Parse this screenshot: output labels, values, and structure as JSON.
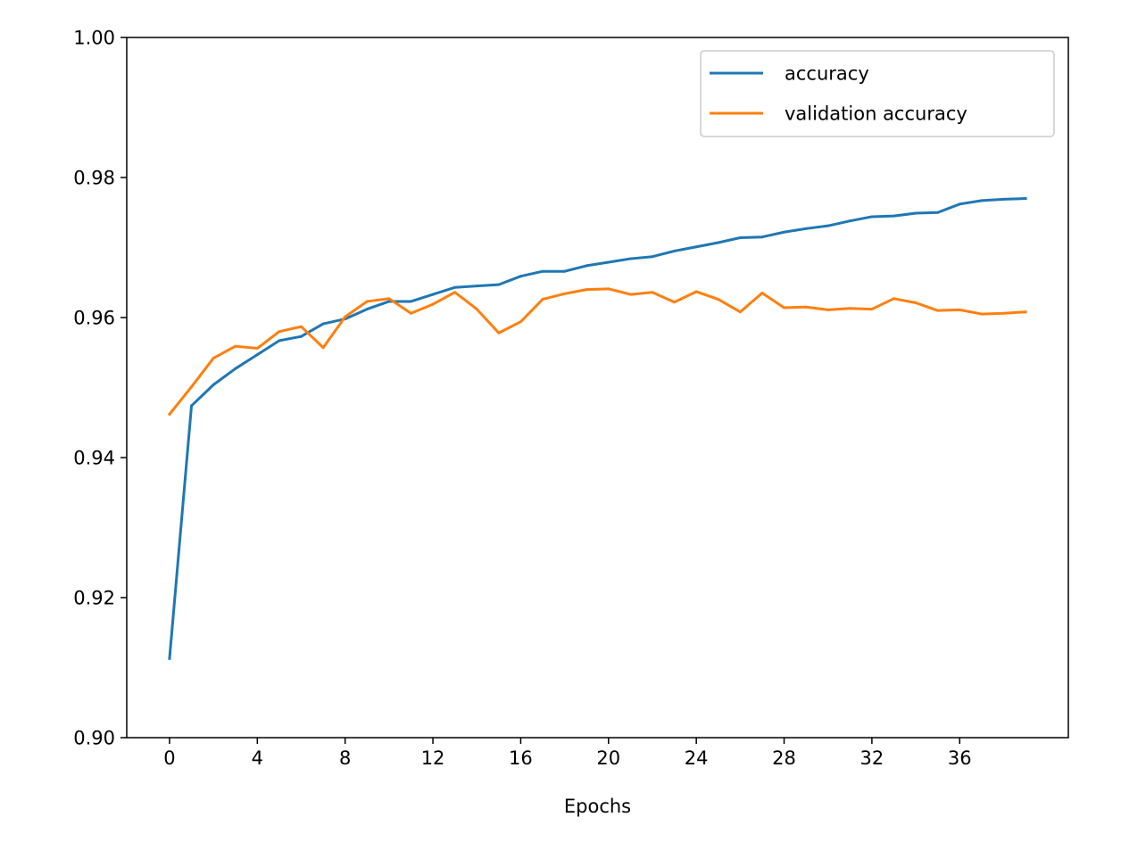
{
  "chart_data": {
    "type": "line",
    "title": "",
    "xlabel": "Epochs",
    "ylabel": "",
    "xlim": [
      -1.95,
      40.95
    ],
    "ylim": [
      0.9,
      1.0
    ],
    "xticks": [
      0,
      4,
      8,
      12,
      16,
      20,
      24,
      28,
      32,
      36
    ],
    "xtick_labels": [
      "0",
      "4",
      "8",
      "12",
      "16",
      "20",
      "24",
      "28",
      "32",
      "36"
    ],
    "yticks": [
      0.9,
      0.92,
      0.94,
      0.96,
      0.98,
      1.0
    ],
    "ytick_labels": [
      "0.90",
      "0.92",
      "0.94",
      "0.96",
      "0.98",
      "1.00"
    ],
    "grid": false,
    "legend_position": "top-right",
    "x": [
      0,
      1,
      2,
      3,
      4,
      5,
      6,
      7,
      8,
      9,
      10,
      11,
      12,
      13,
      14,
      15,
      16,
      17,
      18,
      19,
      20,
      21,
      22,
      23,
      24,
      25,
      26,
      27,
      28,
      29,
      30,
      31,
      32,
      33,
      34,
      35,
      36,
      37,
      38,
      39
    ],
    "series": [
      {
        "name": "accuracy",
        "color": "#1f77b4",
        "values": [
          0.9113,
          0.9474,
          0.9504,
          0.9527,
          0.9547,
          0.9567,
          0.9573,
          0.9591,
          0.9598,
          0.9612,
          0.9623,
          0.9623,
          0.9633,
          0.9643,
          0.9645,
          0.9647,
          0.9659,
          0.9666,
          0.9666,
          0.9674,
          0.9679,
          0.9684,
          0.9687,
          0.9695,
          0.9701,
          0.9707,
          0.9714,
          0.9715,
          0.9722,
          0.9727,
          0.9731,
          0.9738,
          0.9744,
          0.9745,
          0.9749,
          0.975,
          0.9762,
          0.9767,
          0.9769,
          0.977
        ]
      },
      {
        "name": "validation accuracy",
        "color": "#ff7f0e",
        "values": [
          0.9462,
          0.9501,
          0.9542,
          0.9559,
          0.9556,
          0.958,
          0.9587,
          0.9557,
          0.9601,
          0.9623,
          0.9627,
          0.9606,
          0.9619,
          0.9636,
          0.9612,
          0.9578,
          0.9594,
          0.9626,
          0.9634,
          0.964,
          0.9641,
          0.9633,
          0.9636,
          0.9622,
          0.9637,
          0.9626,
          0.9608,
          0.9635,
          0.9614,
          0.9615,
          0.9611,
          0.9613,
          0.9612,
          0.9627,
          0.9621,
          0.961,
          0.9611,
          0.9605,
          0.9606,
          0.9608
        ]
      }
    ]
  }
}
